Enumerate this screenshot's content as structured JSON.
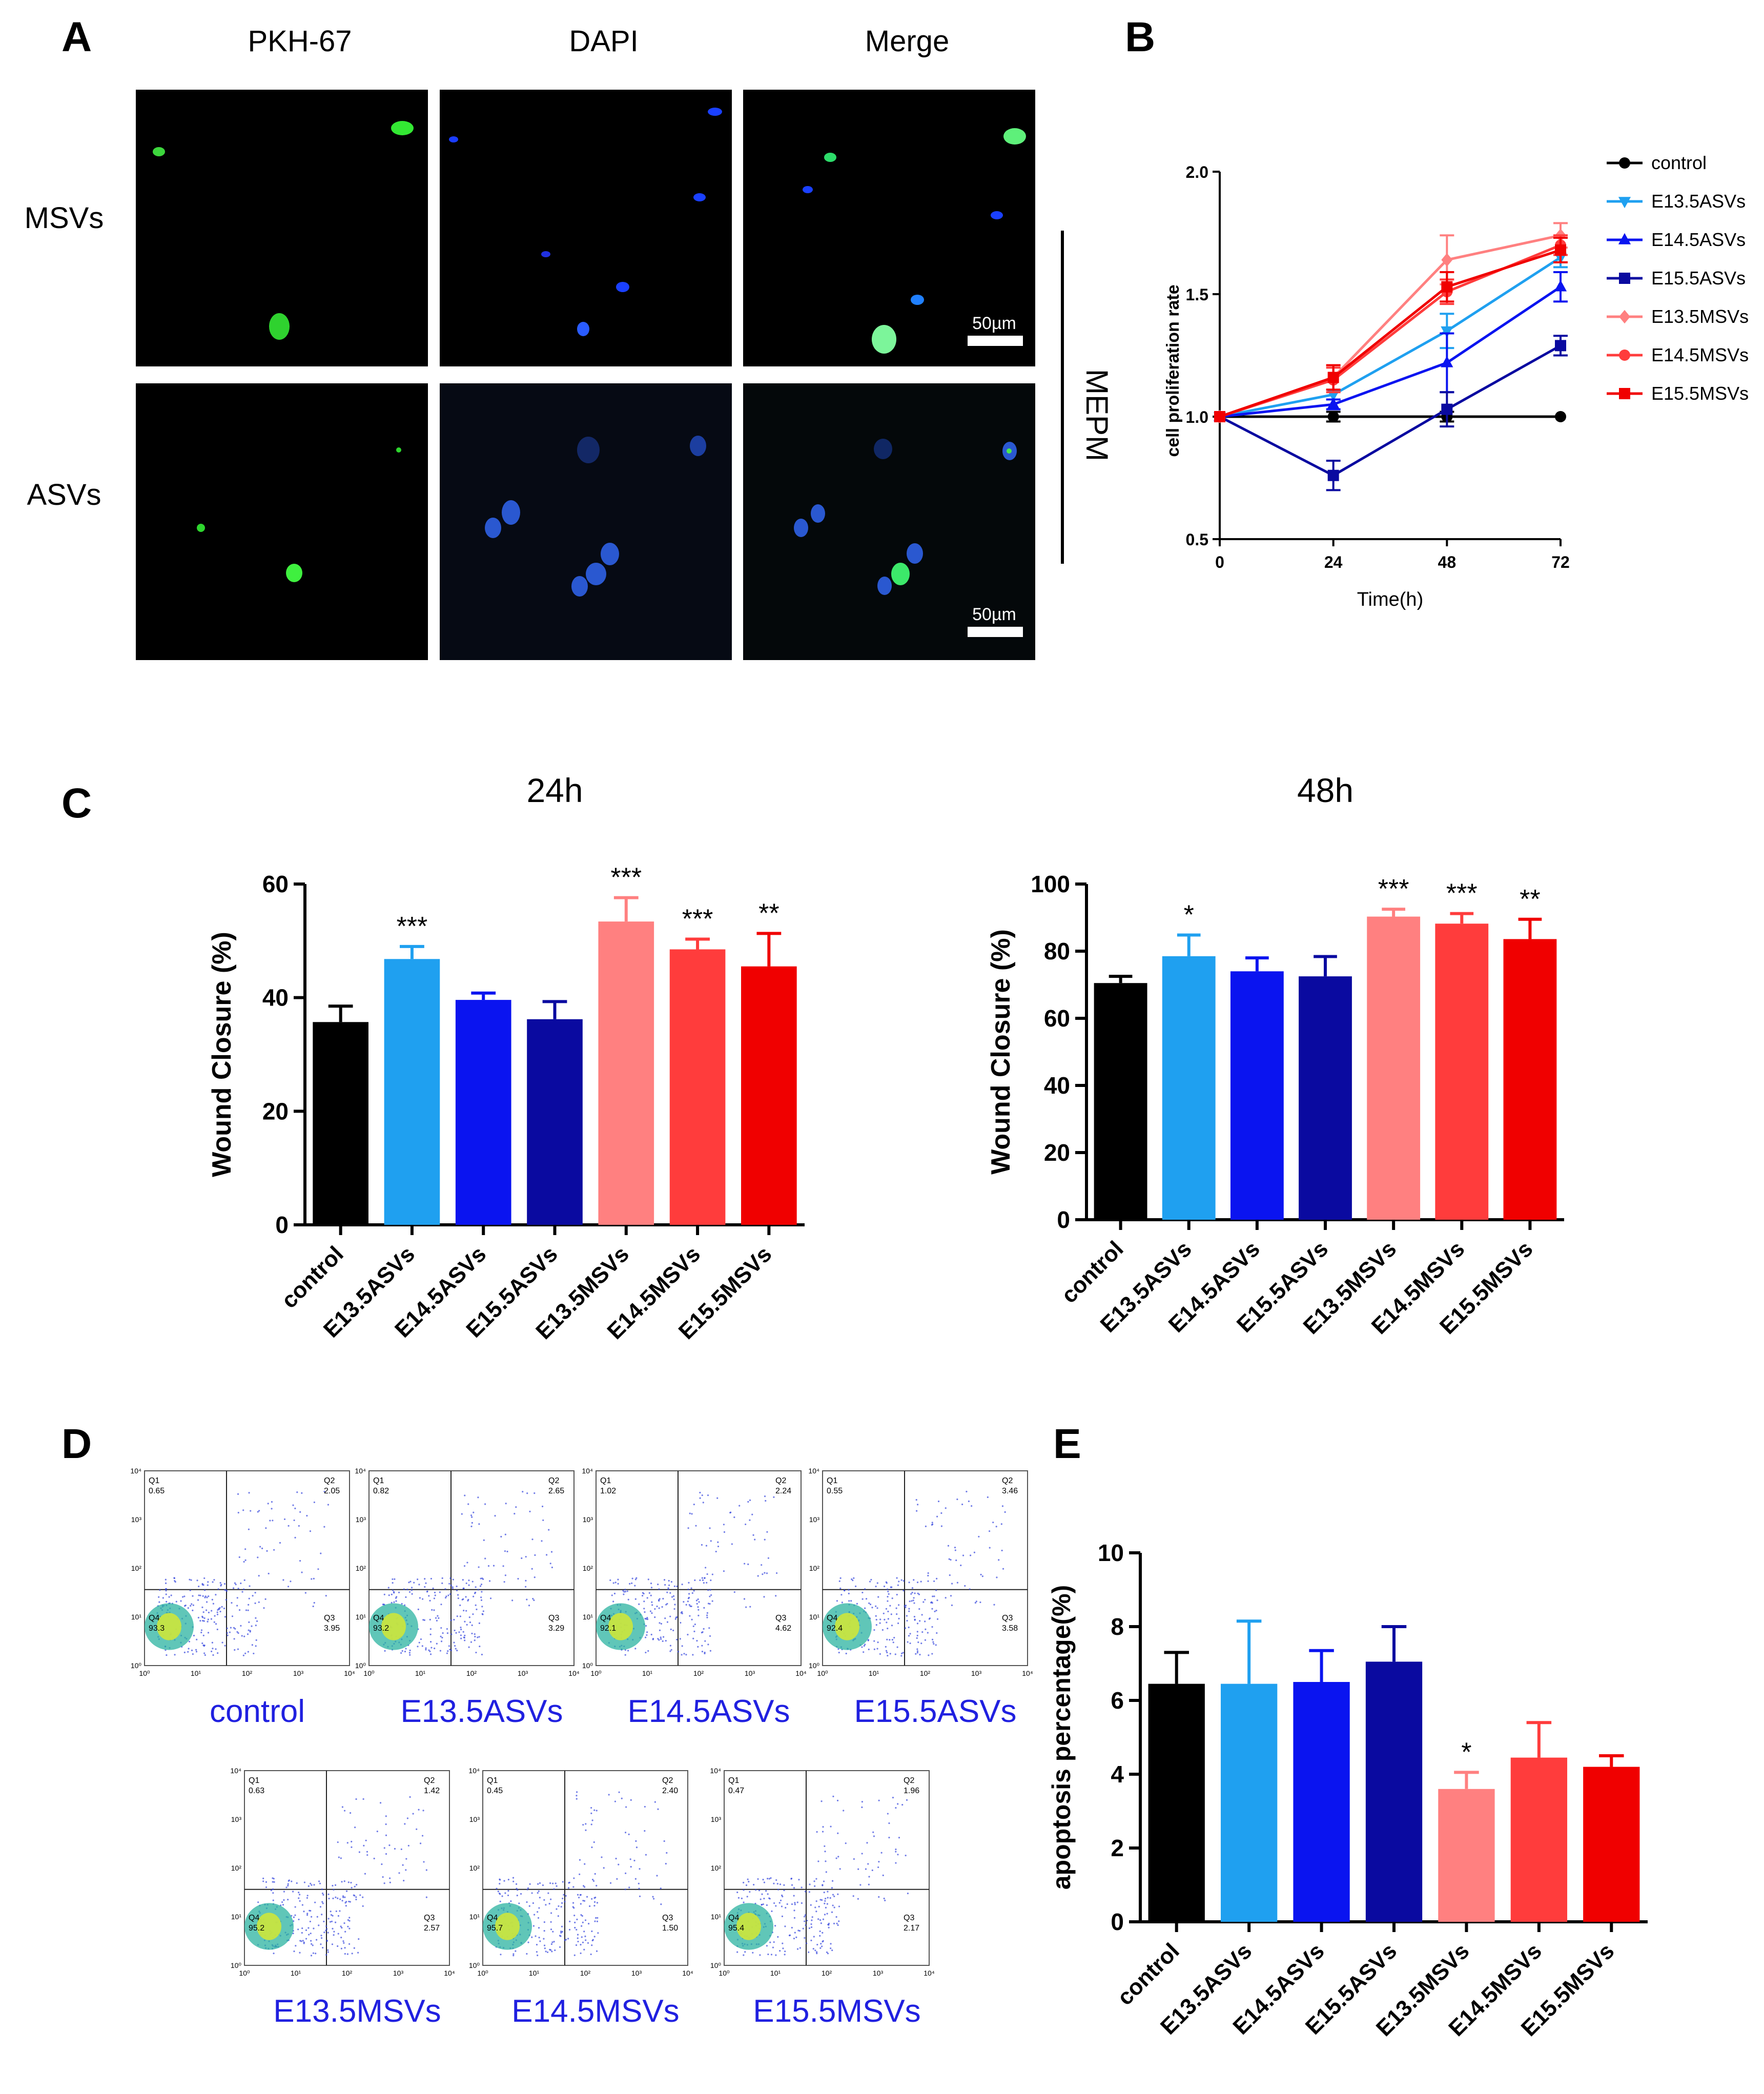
{
  "panel_letters": {
    "a": "A",
    "b": "B",
    "c": "C",
    "d": "D",
    "e": "E"
  },
  "panel_a": {
    "columns": [
      "PKH-67",
      "DAPI",
      "Merge"
    ],
    "rows": [
      "MSVs",
      "ASVs"
    ],
    "scale_bar": "50µm",
    "side_label": "MEPM"
  },
  "colors": {
    "control": "#000000",
    "E13.5ASVs": "#1fa0f0",
    "E14.5ASVs": "#0a14f0",
    "E15.5ASVs": "#0a0aa0",
    "E13.5MSVs": "#ff8080",
    "E14.5MSVs": "#ff3c3c",
    "E15.5MSVs": "#f00000"
  },
  "flow": {
    "plots": [
      {
        "label": "control",
        "q1": "0.65",
        "q2": "2.05",
        "q3": "3.95",
        "q4": "93.3"
      },
      {
        "label": "E13.5ASVs",
        "q1": "0.82",
        "q2": "2.65",
        "q3": "3.29",
        "q4": "93.2"
      },
      {
        "label": "E14.5ASVs",
        "q1": "1.02",
        "q2": "2.24",
        "q3": "4.62",
        "q4": "92.1"
      },
      {
        "label": "E15.5ASVs",
        "q1": "0.55",
        "q2": "3.46",
        "q3": "3.58",
        "q4": "92.4"
      },
      {
        "label": "E13.5MSVs",
        "q1": "0.63",
        "q2": "1.42",
        "q3": "2.57",
        "q4": "95.2"
      },
      {
        "label": "E14.5MSVs",
        "q1": "0.45",
        "q2": "2.40",
        "q3": "1.50",
        "q4": "95.7"
      },
      {
        "label": "E15.5MSVs",
        "q1": "0.47",
        "q2": "1.96",
        "q3": "2.17",
        "q4": "95.4"
      }
    ],
    "quadrant_names": [
      "Q1",
      "Q2",
      "Q3",
      "Q4"
    ],
    "tick_labels": [
      "10⁰",
      "10¹",
      "10²",
      "10³",
      "10⁴"
    ]
  },
  "chart_data": [
    {
      "type": "line",
      "panel": "B",
      "xlabel": "Time(h)",
      "ylabel": "cell proliferation rate",
      "x": [
        0,
        24,
        48,
        72
      ],
      "xticks": [
        "0",
        "24",
        "48",
        "72"
      ],
      "ylim": [
        0.5,
        2.0
      ],
      "yticks": [
        "0.5",
        "1.0",
        "1.5",
        "2.0"
      ],
      "legend_position": "right",
      "series": [
        {
          "name": "control",
          "marker": "circle",
          "values": [
            1.0,
            1.0,
            1.0,
            1.0
          ],
          "err": [
            0,
            0.02,
            0.02,
            0
          ]
        },
        {
          "name": "E13.5ASVs",
          "marker": "triangle-down",
          "values": [
            1.0,
            1.09,
            1.35,
            1.65
          ],
          "err": [
            0,
            0.02,
            0.07,
            0.04
          ]
        },
        {
          "name": "E14.5ASVs",
          "marker": "triangle-up",
          "values": [
            1.0,
            1.05,
            1.22,
            1.53
          ],
          "err": [
            0,
            0.02,
            0.12,
            0.06
          ]
        },
        {
          "name": "E15.5ASVs",
          "marker": "square",
          "values": [
            1.0,
            0.76,
            1.03,
            1.29
          ],
          "err": [
            0,
            0.06,
            0.07,
            0.04
          ]
        },
        {
          "name": "E13.5MSVs",
          "marker": "diamond",
          "values": [
            1.0,
            1.16,
            1.64,
            1.74
          ],
          "err": [
            0,
            0.05,
            0.1,
            0.05
          ]
        },
        {
          "name": "E14.5MSVs",
          "marker": "circle",
          "values": [
            1.0,
            1.15,
            1.51,
            1.7
          ],
          "err": [
            0,
            0.05,
            0.05,
            0.04
          ]
        },
        {
          "name": "E15.5MSVs",
          "marker": "square",
          "values": [
            1.0,
            1.16,
            1.53,
            1.68
          ],
          "err": [
            0,
            0.05,
            0.06,
            0.05
          ]
        }
      ]
    },
    {
      "type": "bar",
      "panel": "C-24h",
      "title": "24h",
      "ylabel": "Wound Closure (%)",
      "categories": [
        "control",
        "E13.5ASVs",
        "E14.5ASVs",
        "E15.5ASVs",
        "E13.5MSVs",
        "E14.5MSVs",
        "E15.5MSVs"
      ],
      "values": [
        35.7,
        46.8,
        39.6,
        36.2,
        53.4,
        48.5,
        45.5
      ],
      "err": [
        2.8,
        2.2,
        1.2,
        3.1,
        4.2,
        1.8,
        5.8
      ],
      "significance": [
        "",
        "***",
        "",
        "",
        "***",
        "***",
        "**"
      ],
      "ylim": [
        0,
        60
      ],
      "yticks": [
        "0",
        "20",
        "40",
        "60"
      ]
    },
    {
      "type": "bar",
      "panel": "C-48h",
      "title": "48h",
      "ylabel": "Wound Closure (%)",
      "categories": [
        "control",
        "E13.5ASVs",
        "E14.5ASVs",
        "E15.5ASVs",
        "E13.5MSVs",
        "E14.5MSVs",
        "E15.5MSVs"
      ],
      "values": [
        70.5,
        78.5,
        74.0,
        72.5,
        90.3,
        88.2,
        83.6
      ],
      "err": [
        2.0,
        6.3,
        4.0,
        5.9,
        2.2,
        3.0,
        5.9
      ],
      "significance": [
        "",
        "*",
        "",
        "",
        "***",
        "***",
        "**"
      ],
      "ylim": [
        0,
        100
      ],
      "yticks": [
        "0",
        "20",
        "40",
        "60",
        "80",
        "100"
      ]
    },
    {
      "type": "bar",
      "panel": "E",
      "ylabel": "apoptosis percentage(%)",
      "categories": [
        "control",
        "E13.5ASVs",
        "E14.5ASVs",
        "E15.5ASVs",
        "E13.5MSVs",
        "E14.5MSVs",
        "E15.5MSVs"
      ],
      "values": [
        6.45,
        6.45,
        6.5,
        7.05,
        3.6,
        4.45,
        4.2
      ],
      "err": [
        0.85,
        1.7,
        0.85,
        0.95,
        0.45,
        0.95,
        0.3
      ],
      "significance": [
        "",
        "",
        "",
        "",
        "*",
        "",
        ""
      ],
      "ylim": [
        0,
        10
      ],
      "yticks": [
        "0",
        "2",
        "4",
        "6",
        "8",
        "10"
      ]
    }
  ]
}
